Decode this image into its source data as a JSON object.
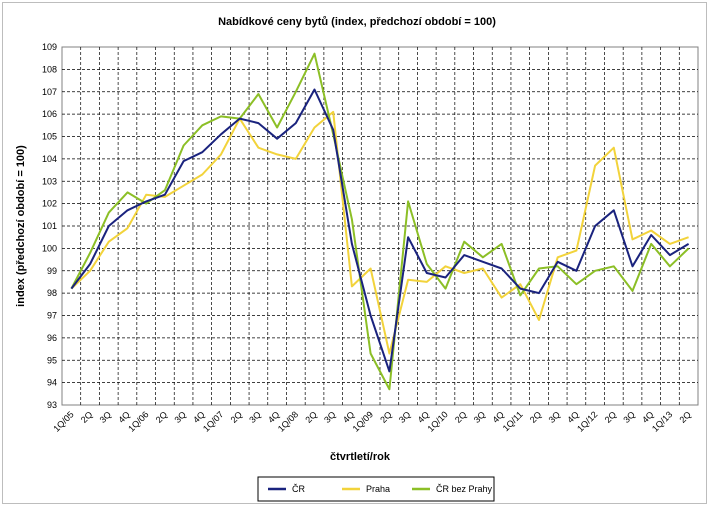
{
  "chart_data": {
    "type": "line",
    "title": "Nabídkové ceny bytů (index, předchozí období = 100)",
    "xlabel": "čtvrtletí/rok",
    "ylabel": "index (předchozí období = 100)",
    "ylim": [
      93,
      109
    ],
    "yticks": [
      93,
      94,
      95,
      96,
      97,
      98,
      99,
      100,
      101,
      102,
      103,
      104,
      105,
      106,
      107,
      108,
      109
    ],
    "grid": true,
    "legend_position": "bottom",
    "categories": [
      "1Q/05",
      "2Q",
      "3Q",
      "4Q",
      "1Q/06",
      "2Q",
      "3Q",
      "4Q",
      "1Q/07",
      "2Q",
      "3Q",
      "4Q",
      "1Q/08",
      "2Q",
      "3Q",
      "4Q",
      "1Q/09",
      "2Q",
      "3Q",
      "4Q",
      "1Q/10",
      "2Q",
      "3Q",
      "4Q",
      "1Q/11",
      "2Q",
      "3Q",
      "4Q",
      "1Q/12",
      "2Q",
      "3Q",
      "4Q",
      "1Q/13",
      "2Q"
    ],
    "series": [
      {
        "name": "ČR",
        "color": "#1a237e",
        "values": [
          98.2,
          99.3,
          101.0,
          101.7,
          102.1,
          102.4,
          103.9,
          104.3,
          105.1,
          105.8,
          105.6,
          104.9,
          105.6,
          107.1,
          105.3,
          100.2,
          97.0,
          94.5,
          100.5,
          98.9,
          98.7,
          99.7,
          99.4,
          99.1,
          98.2,
          98.0,
          99.4,
          99.0,
          101.0,
          101.7,
          99.2,
          100.6,
          99.7,
          100.2
        ]
      },
      {
        "name": "Praha",
        "color": "#f2d33b",
        "values": [
          98.2,
          99.0,
          100.3,
          100.9,
          102.4,
          102.3,
          102.8,
          103.3,
          104.2,
          105.8,
          104.5,
          104.2,
          104.0,
          105.4,
          106.1,
          98.3,
          99.1,
          95.3,
          98.6,
          98.5,
          99.2,
          98.9,
          99.1,
          97.8,
          98.4,
          96.8,
          99.6,
          99.9,
          103.7,
          104.5,
          100.4,
          100.8,
          100.2,
          100.5
        ]
      },
      {
        "name": "ČR bez Prahy",
        "color": "#8cbf26",
        "values": [
          98.2,
          99.8,
          101.6,
          102.5,
          102.0,
          102.6,
          104.6,
          105.5,
          105.9,
          105.8,
          106.9,
          105.4,
          107.0,
          108.7,
          105.1,
          101.3,
          95.3,
          93.7,
          102.1,
          99.3,
          98.2,
          100.3,
          99.6,
          100.2,
          97.9,
          99.1,
          99.2,
          98.4,
          99.0,
          99.2,
          98.1,
          100.2,
          99.2,
          100.0
        ]
      }
    ]
  }
}
